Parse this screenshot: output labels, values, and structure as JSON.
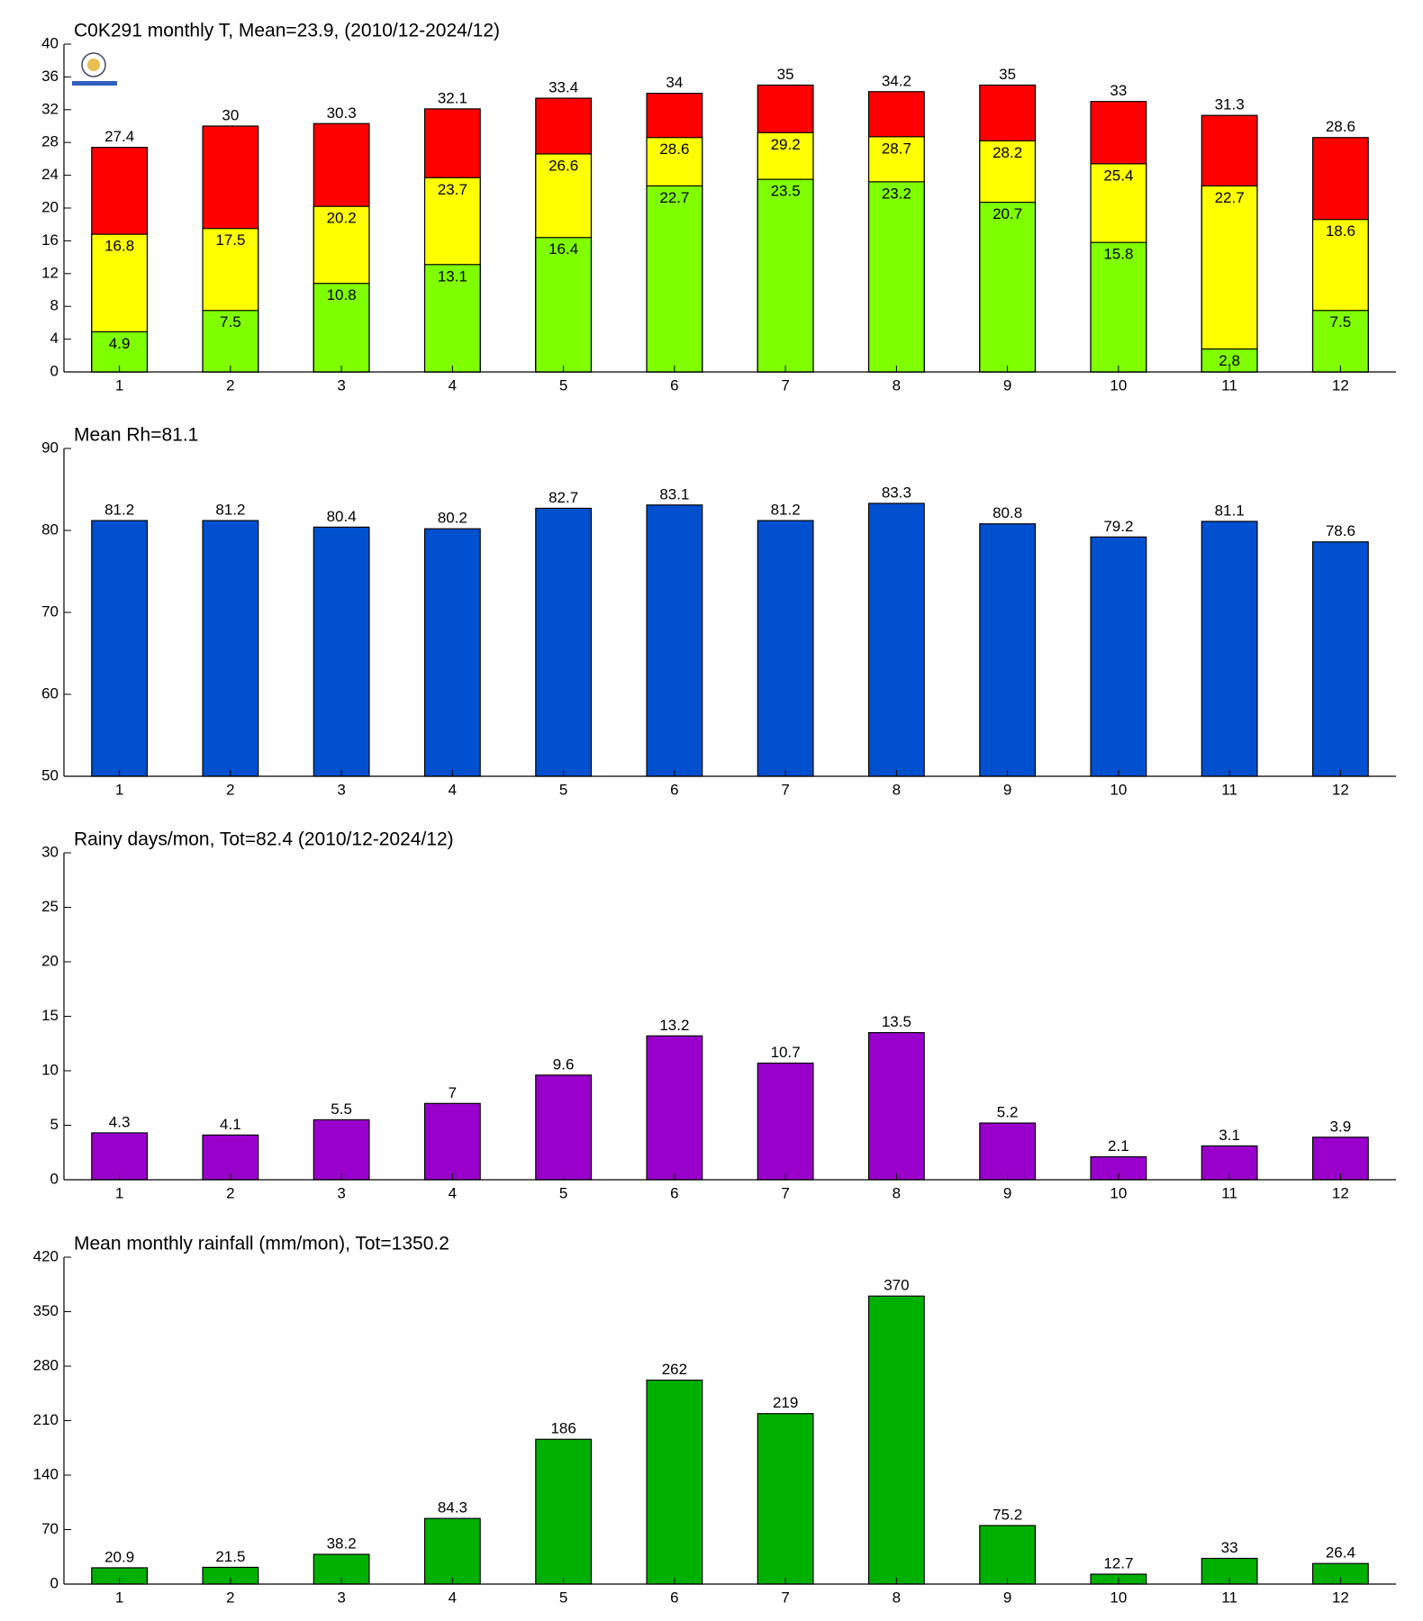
{
  "chart_data": [
    {
      "type": "overlay_bar",
      "title": "C0K291 monthly T, Mean=23.9, (2010/12-2024/12)",
      "categories": [
        "1",
        "2",
        "3",
        "4",
        "5",
        "6",
        "7",
        "8",
        "9",
        "10",
        "11",
        "12"
      ],
      "series": [
        {
          "color": "#ff0000",
          "label": "above",
          "values": [
            27.4,
            30,
            30.3,
            32.1,
            33.4,
            34,
            35,
            34.2,
            35,
            33,
            31.3,
            28.6
          ]
        },
        {
          "color": "#ffff00",
          "label": "inside",
          "values": [
            16.8,
            17.5,
            20.2,
            23.7,
            26.6,
            28.6,
            29.2,
            28.7,
            28.2,
            25.4,
            22.7,
            18.6
          ]
        },
        {
          "color": "#80ff00",
          "label": "inside",
          "values": [
            4.9,
            7.5,
            10.8,
            13.1,
            16.4,
            22.7,
            23.5,
            23.2,
            20.7,
            15.8,
            2.8,
            7.5
          ]
        }
      ],
      "ylim": [
        0,
        40
      ],
      "yticks": [
        0,
        4,
        8,
        12,
        16,
        20,
        24,
        28,
        32,
        36,
        40
      ]
    },
    {
      "type": "bar",
      "title": "Mean Rh=81.1",
      "categories": [
        "1",
        "2",
        "3",
        "4",
        "5",
        "6",
        "7",
        "8",
        "9",
        "10",
        "11",
        "12"
      ],
      "color": "#0050d0",
      "values": [
        81.2,
        81.2,
        80.4,
        80.2,
        82.7,
        83.1,
        81.2,
        83.3,
        80.8,
        79.2,
        81.1,
        78.6
      ],
      "ylim": [
        50,
        90
      ],
      "yticks": [
        50,
        60,
        70,
        80,
        90
      ]
    },
    {
      "type": "bar",
      "title": "Rainy days/mon, Tot=82.4 (2010/12-2024/12)",
      "categories": [
        "1",
        "2",
        "3",
        "4",
        "5",
        "6",
        "7",
        "8",
        "9",
        "10",
        "11",
        "12"
      ],
      "color": "#9900cc",
      "values": [
        4.3,
        4.1,
        5.5,
        7,
        9.6,
        13.2,
        10.7,
        13.5,
        5.2,
        2.1,
        3.1,
        3.9
      ],
      "ylim": [
        0,
        30
      ],
      "yticks": [
        0,
        5,
        10,
        15,
        20,
        25,
        30
      ]
    },
    {
      "type": "bar",
      "title": "Mean monthly rainfall (mm/mon), Tot=1350.2",
      "categories": [
        "1",
        "2",
        "3",
        "4",
        "5",
        "6",
        "7",
        "8",
        "9",
        "10",
        "11",
        "12"
      ],
      "color": "#00b000",
      "values": [
        20.9,
        21.5,
        38.2,
        84.3,
        186,
        262,
        219,
        370,
        75.2,
        12.7,
        33,
        26.4
      ],
      "ylim": [
        0,
        420
      ],
      "yticks": [
        0,
        70,
        140,
        210,
        280,
        350,
        420
      ]
    }
  ]
}
